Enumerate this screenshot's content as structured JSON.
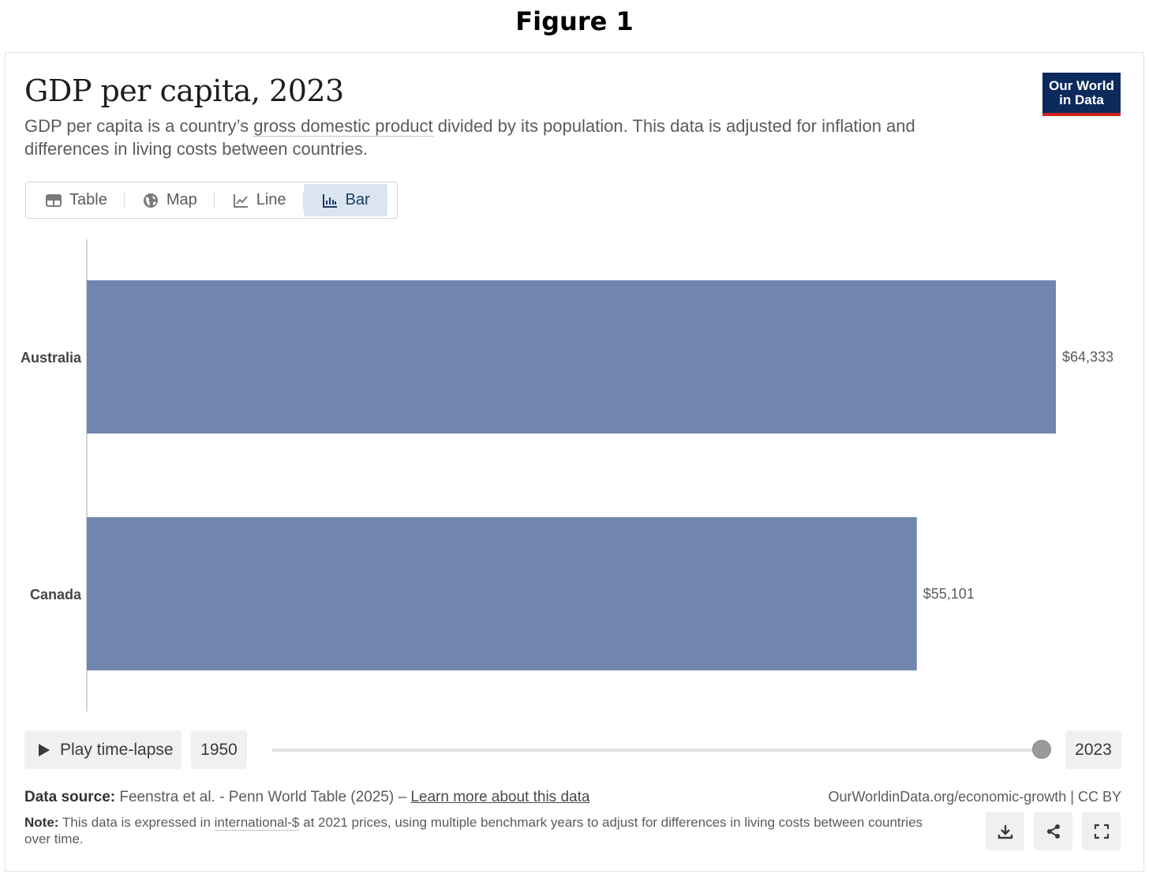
{
  "figure_label": "Figure 1",
  "header": {
    "title": "GDP per capita, 2023",
    "subtitle_before": "GDP per capita is a country’s ",
    "subtitle_term": "gross domestic product",
    "subtitle_after": " divided by its population. This data is adjusted for inflation and differences in living costs between countries."
  },
  "logo": {
    "line1": "Our World",
    "line2": "in Data"
  },
  "tabs": [
    {
      "label": "Table",
      "icon": "table-icon"
    },
    {
      "label": "Map",
      "icon": "globe-icon"
    },
    {
      "label": "Line",
      "icon": "line-chart-icon"
    },
    {
      "label": "Bar",
      "icon": "bar-chart-icon",
      "active": true
    }
  ],
  "chart_data": {
    "type": "bar",
    "orientation": "horizontal",
    "title": "GDP per capita, 2023",
    "categories": [
      "Australia",
      "Canada"
    ],
    "values": [
      64333,
      55101
    ],
    "value_labels": [
      "$64,333",
      "$55,101"
    ],
    "unit": "international-$ at 2021 prices",
    "bar_color": "#7186af",
    "xlim": [
      0,
      64333
    ],
    "grid": false,
    "legend": "none"
  },
  "timeline": {
    "play_label": "Play time-lapse",
    "start_year": "1950",
    "end_year": "2023",
    "selected_fraction": 1.0
  },
  "footer": {
    "source_label": "Data source:",
    "source_text": " Feenstra et al. - Penn World Table (2025) – ",
    "source_link": "Learn more about this data",
    "site": "OurWorldinData.org/economic-growth | CC BY",
    "note_label": "Note:",
    "note_before": " This data is expressed in ",
    "note_term": "international-$",
    "note_after": " at 2021 prices, using multiple benchmark years to adjust for differences in living costs between countries over time."
  },
  "actions": [
    {
      "name": "download-button",
      "icon": "download-icon"
    },
    {
      "name": "share-button",
      "icon": "share-icon"
    },
    {
      "name": "fullscreen-button",
      "icon": "fullscreen-icon"
    }
  ]
}
